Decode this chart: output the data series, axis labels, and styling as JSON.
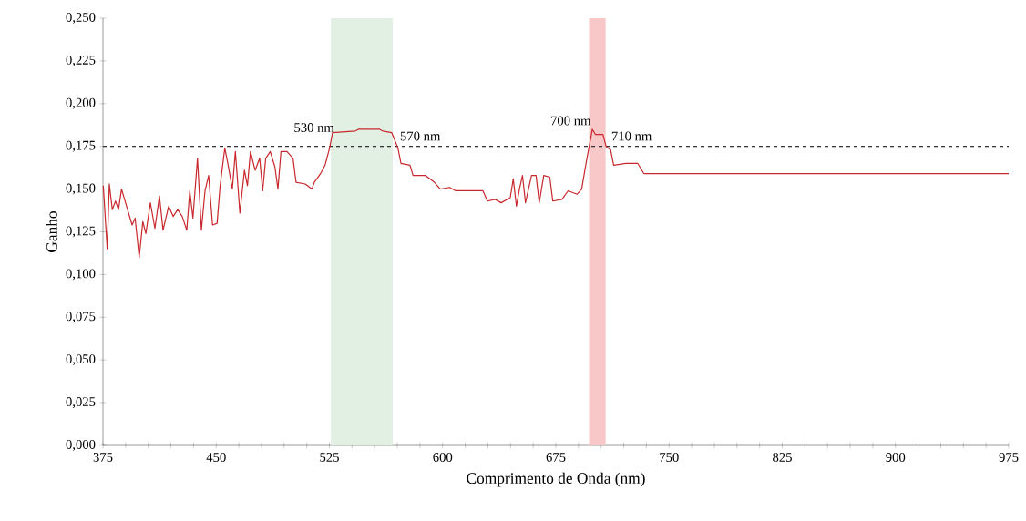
{
  "chart_data": {
    "type": "line",
    "xlabel": "Comprimento de Onda (nm)",
    "ylabel": "Ganho",
    "xlim": [
      375,
      975
    ],
    "ylim": [
      0,
      0.25
    ],
    "xticks": [
      375,
      {
        "value": 390,
        "label": null
      },
      {
        "value": 405,
        "label": null
      },
      {
        "value": 420,
        "label": null
      },
      {
        "value": 435,
        "label": null
      },
      450,
      {
        "value": 465,
        "label": null
      },
      {
        "value": 480,
        "label": null
      },
      {
        "value": 495,
        "label": null
      },
      {
        "value": 510,
        "label": null
      },
      525,
      {
        "value": 540,
        "label": null
      },
      {
        "value": 555,
        "label": null
      },
      {
        "value": 570,
        "label": null
      },
      {
        "value": 585,
        "label": null
      },
      600,
      {
        "value": 615,
        "label": null
      },
      {
        "value": 630,
        "label": null
      },
      {
        "value": 645,
        "label": null
      },
      {
        "value": 660,
        "label": null
      },
      675,
      {
        "value": 690,
        "label": null
      },
      {
        "value": 705,
        "label": null
      },
      {
        "value": 720,
        "label": null
      },
      {
        "value": 735,
        "label": null
      },
      750,
      {
        "value": 765,
        "label": null
      },
      {
        "value": 780,
        "label": null
      },
      {
        "value": 795,
        "label": null
      },
      {
        "value": 810,
        "label": null
      },
      825,
      {
        "value": 840,
        "label": null
      },
      {
        "value": 855,
        "label": null
      },
      {
        "value": 870,
        "label": null
      },
      {
        "value": 885,
        "label": null
      },
      900,
      {
        "value": 915,
        "label": null
      },
      {
        "value": 930,
        "label": null
      },
      {
        "value": 945,
        "label": null
      },
      {
        "value": 960,
        "label": null
      },
      975
    ],
    "yticks": [
      {
        "value": 0,
        "label": "0,000"
      },
      {
        "value": 0.025,
        "label": "0,025"
      },
      {
        "value": 0.05,
        "label": "0,050"
      },
      {
        "value": 0.075,
        "label": "0,075"
      },
      {
        "value": 0.1,
        "label": "0,100"
      },
      {
        "value": 0.125,
        "label": "0,125"
      },
      {
        "value": 0.15,
        "label": "0,150"
      },
      {
        "value": 0.175,
        "label": "0,175"
      },
      {
        "value": 0.2,
        "label": "0,200"
      },
      {
        "value": 0.225,
        "label": "0,225"
      },
      {
        "value": 0.25,
        "label": "0,250"
      }
    ],
    "x": [
      375.2,
      377.8,
      379.2,
      381.2,
      383.3,
      385.3,
      387.3,
      394.3,
      396.3,
      399,
      401.4,
      403.4,
      406.4,
      409.4,
      412.4,
      414.8,
      418.5,
      421.5,
      424.5,
      427.5,
      430.5,
      432.5,
      434.6,
      437.6,
      440.2,
      442.6,
      445,
      447.6,
      450.6,
      452.6,
      455.7,
      457.7,
      460.7,
      462.7,
      465.7,
      468.7,
      470.7,
      472.7,
      475.8,
      478.8,
      480.8,
      482.8,
      485.8,
      488.9,
      490.9,
      492.9,
      496.9,
      500.9,
      502.9,
      509,
      513.4,
      515,
      519.1,
      522.1,
      525.1,
      527.1,
      542.2,
      544.2,
      558.3,
      560.3,
      566.3,
      570.4,
      572.4,
      578.4,
      580.4,
      588.5,
      594.5,
      598.5,
      604.6,
      608.6,
      626.7,
      629.7,
      634.8,
      638.8,
      644.8,
      646.8,
      648.9,
      650.9,
      652.9,
      654.9,
      658.9,
      661.9,
      664,
      667,
      671,
      673,
      679.1,
      683.1,
      689.1,
      692.1,
      695.2,
      699.2,
      701.2,
      706.2,
      708.3,
      711.3,
      713.3,
      721.4,
      729.3,
      733.4,
      975
    ],
    "series": [
      {
        "color": "#c8282d",
        "values": [
          0.152,
          0.115,
          0.153,
          0.138,
          0.143,
          0.138,
          0.15,
          0.129,
          0.133,
          0.11,
          0.131,
          0.124,
          0.142,
          0.127,
          0.146,
          0.126,
          0.14,
          0.134,
          0.138,
          0.134,
          0.126,
          0.149,
          0.133,
          0.168,
          0.126,
          0.149,
          0.158,
          0.129,
          0.13,
          0.152,
          0.174,
          0.165,
          0.15,
          0.172,
          0.136,
          0.161,
          0.152,
          0.172,
          0.161,
          0.168,
          0.149,
          0.168,
          0.172,
          0.163,
          0.15,
          0.172,
          0.172,
          0.168,
          0.154,
          0.153,
          0.15,
          0.154,
          0.159,
          0.164,
          0.174,
          0.183,
          0.184,
          0.185,
          0.185,
          0.184,
          0.183,
          0.174,
          0.165,
          0.164,
          0.158,
          0.158,
          0.154,
          0.15,
          0.151,
          0.149,
          0.149,
          0.143,
          0.144,
          0.142,
          0.145,
          0.156,
          0.14,
          0.15,
          0.158,
          0.142,
          0.158,
          0.158,
          0.142,
          0.158,
          0.157,
          0.143,
          0.144,
          0.149,
          0.147,
          0.15,
          0.166,
          0.185,
          0.182,
          0.182,
          0.175,
          0.173,
          0.164,
          0.165,
          0.165,
          0.159,
          0.159
        ]
      }
    ],
    "marker": "none",
    "line_style": "solid",
    "grid": false,
    "ref_lines": [
      {
        "axis": "y",
        "value": 0.175,
        "color": "#333333",
        "line_style": "dashed"
      }
    ],
    "bands": [
      {
        "axis": "x",
        "from": 526,
        "to": 567,
        "color": "#e2f0e4"
      },
      {
        "axis": "x",
        "from": 697,
        "to": 708,
        "color": "#f8c8c8"
      }
    ],
    "annotations": [
      {
        "text": "530 nm",
        "x": 530,
        "y": 0.186
      },
      {
        "text": "570 nm",
        "x": 570,
        "y": 0.181
      },
      {
        "text": "700 nm",
        "x": 700,
        "y": 0.19
      },
      {
        "text": "710 nm",
        "x": 710,
        "y": 0.181
      }
    ]
  }
}
